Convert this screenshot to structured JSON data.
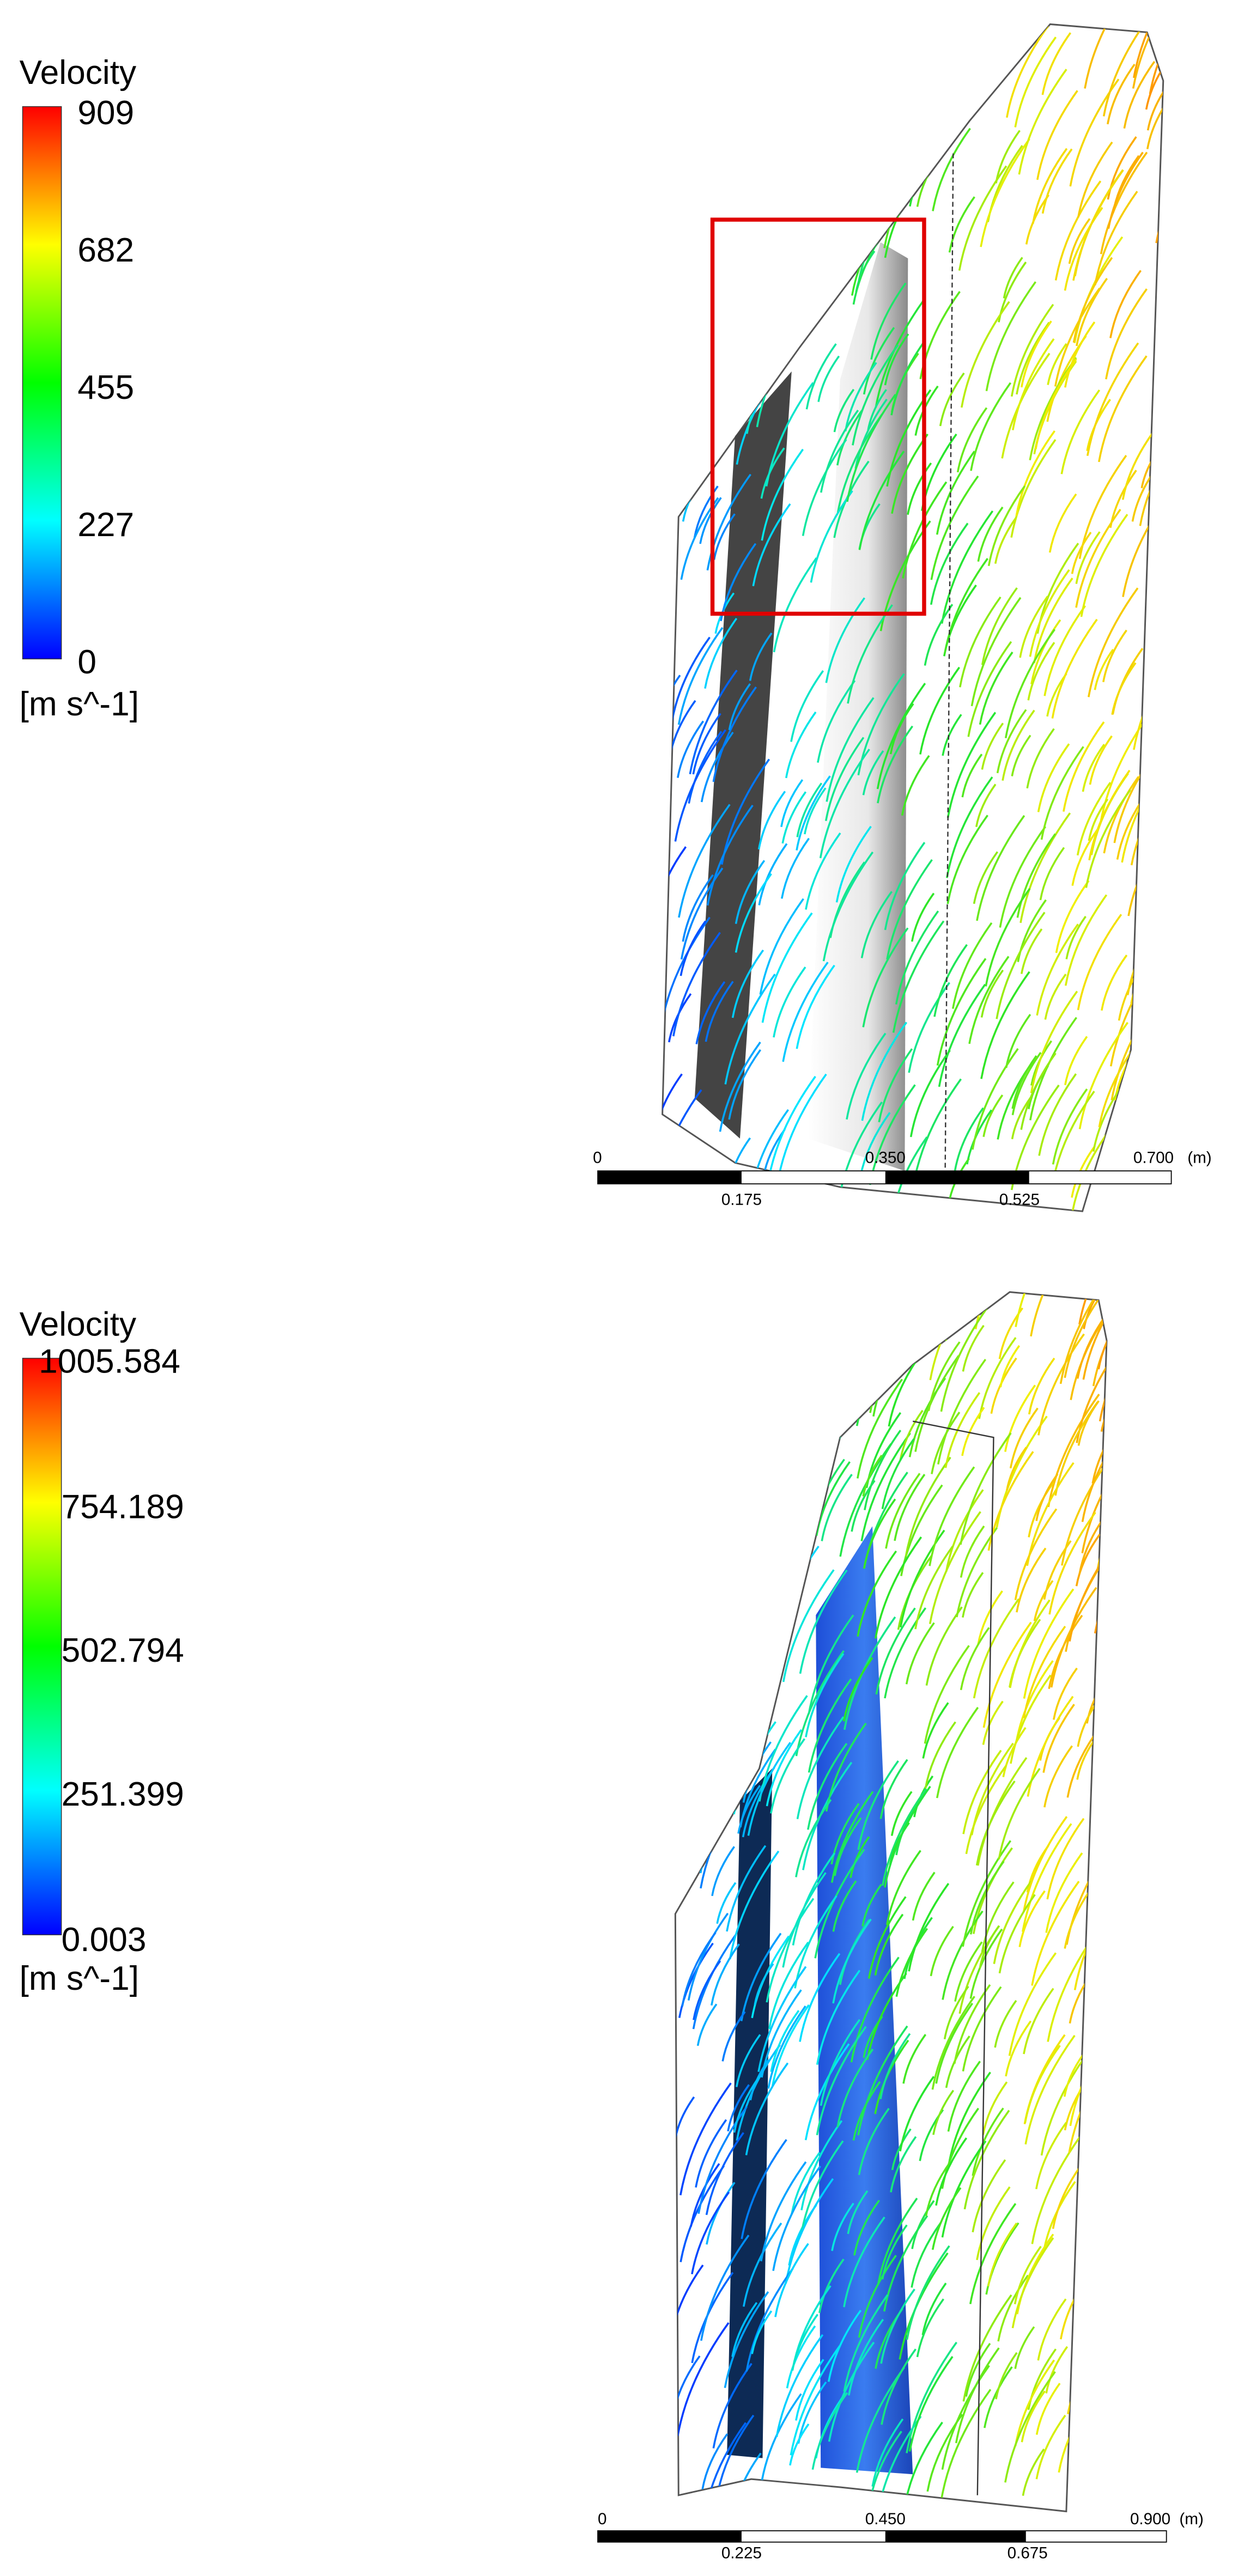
{
  "panels": [
    {
      "legend": {
        "title": "Velocity",
        "labels": [
          "909",
          "682",
          "455",
          "227",
          "0"
        ],
        "unit": "[m s^-1]"
      },
      "scale": {
        "upper_labels": [
          "0",
          "0.350",
          "0.700"
        ],
        "lower_labels": [
          "0.175",
          "0.525"
        ],
        "unit": "(m)"
      }
    },
    {
      "legend": {
        "title": "Velocity",
        "labels": [
          "1005.584",
          "754.189",
          "502.794",
          "251.399",
          "0.003"
        ],
        "unit": "[m s^-1]"
      },
      "scale": {
        "upper_labels": [
          "0",
          "0.450",
          "0.900"
        ],
        "lower_labels": [
          "0.225",
          "0.675"
        ],
        "unit": "(m)"
      }
    }
  ]
}
